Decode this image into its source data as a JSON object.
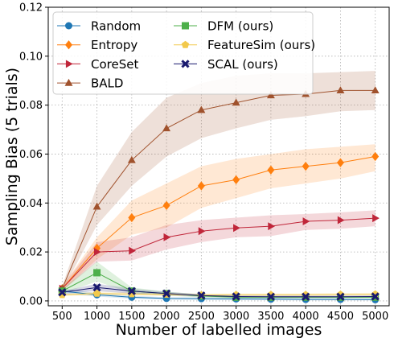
{
  "chart_data": {
    "type": "line",
    "xlabel": "Number of labelled images",
    "ylabel": "Sampling Bias (5 trials)",
    "xlim": [
      300,
      5200
    ],
    "ylim": [
      -0.002,
      0.12
    ],
    "x_ticks": [
      500,
      1000,
      1500,
      2000,
      2500,
      3000,
      3500,
      4000,
      4500,
      5000
    ],
    "y_ticks": [
      0.0,
      0.02,
      0.04,
      0.06,
      0.08,
      0.1,
      0.12
    ],
    "y_tick_labels": [
      "0.00",
      "0.02",
      "0.04",
      "0.06",
      "0.08",
      "0.10",
      "0.12"
    ],
    "grid": true,
    "legend_position": "top-left",
    "x": [
      500,
      1000,
      1500,
      2000,
      2500,
      3000,
      3500,
      4000,
      4500,
      5000
    ],
    "series": [
      {
        "name": "Random",
        "color": "#1f77b4",
        "marker": "circle",
        "values": [
          0.004,
          0.0025,
          0.0015,
          0.001,
          0.0009,
          0.0008,
          0.0007,
          0.0006,
          0.0006,
          0.0005
        ],
        "lower": [
          0.003,
          0.0018,
          0.0009,
          0.0005,
          0.0004,
          0.0003,
          0.0003,
          0.0002,
          0.0002,
          0.0002
        ],
        "upper": [
          0.005,
          0.0032,
          0.0021,
          0.0015,
          0.0014,
          0.0013,
          0.0012,
          0.0011,
          0.001,
          0.0009
        ]
      },
      {
        "name": "Entropy",
        "color": "#ff7f0e",
        "marker": "diamond",
        "values": [
          0.005,
          0.0215,
          0.034,
          0.039,
          0.047,
          0.0495,
          0.0535,
          0.055,
          0.0565,
          0.059
        ],
        "lower": [
          0.004,
          0.017,
          0.027,
          0.03,
          0.038,
          0.042,
          0.046,
          0.048,
          0.05,
          0.053
        ],
        "upper": [
          0.006,
          0.026,
          0.041,
          0.048,
          0.055,
          0.058,
          0.06,
          0.062,
          0.063,
          0.064
        ]
      },
      {
        "name": "CoreSet",
        "color": "#c0263a",
        "marker": "triangle-right",
        "values": [
          0.005,
          0.02,
          0.0205,
          0.026,
          0.0285,
          0.0298,
          0.0305,
          0.0325,
          0.033,
          0.0338
        ],
        "lower": [
          0.004,
          0.016,
          0.0165,
          0.021,
          0.024,
          0.026,
          0.0265,
          0.029,
          0.0295,
          0.0305
        ],
        "upper": [
          0.006,
          0.024,
          0.026,
          0.031,
          0.033,
          0.034,
          0.035,
          0.0355,
          0.0362,
          0.037
        ]
      },
      {
        "name": "BALD",
        "color": "#a0522d",
        "marker": "triangle-up",
        "values": [
          0.005,
          0.0385,
          0.0575,
          0.0705,
          0.078,
          0.081,
          0.084,
          0.0845,
          0.086,
          0.086
        ],
        "lower": [
          0.004,
          0.031,
          0.047,
          0.059,
          0.0665,
          0.0705,
          0.074,
          0.0755,
          0.0775,
          0.078
        ],
        "upper": [
          0.006,
          0.047,
          0.069,
          0.083,
          0.089,
          0.092,
          0.093,
          0.093,
          0.0935,
          0.094
        ]
      },
      {
        "name": "DFM (ours)",
        "color": "#4daf4a",
        "marker": "square",
        "values": [
          0.004,
          0.0115,
          0.004,
          0.003,
          0.002,
          0.0015,
          0.0015,
          0.0015,
          0.0015,
          0.0015
        ],
        "lower": [
          0.003,
          0.008,
          0.003,
          0.0022,
          0.0014,
          0.001,
          0.001,
          0.001,
          0.001,
          0.001
        ],
        "upper": [
          0.005,
          0.016,
          0.0055,
          0.0038,
          0.0027,
          0.002,
          0.002,
          0.002,
          0.002,
          0.002
        ]
      },
      {
        "name": "FeatureSim (ours)",
        "color": "#f2c94c",
        "marker": "pentagon",
        "values": [
          0.0025,
          0.003,
          0.0028,
          0.0026,
          0.0024,
          0.0025,
          0.0025,
          0.0025,
          0.0026,
          0.0027
        ],
        "lower": [
          0.002,
          0.0022,
          0.0021,
          0.002,
          0.0018,
          0.0019,
          0.0019,
          0.0019,
          0.002,
          0.0021
        ],
        "upper": [
          0.003,
          0.0038,
          0.0035,
          0.0032,
          0.003,
          0.0031,
          0.0031,
          0.0031,
          0.0032,
          0.0033
        ]
      },
      {
        "name": "SCAL (ours)",
        "color": "#1a1a6e",
        "marker": "x",
        "values": [
          0.0035,
          0.0055,
          0.004,
          0.003,
          0.0022,
          0.0018,
          0.0017,
          0.0017,
          0.0017,
          0.0018
        ],
        "lower": [
          0.003,
          0.004,
          0.003,
          0.0023,
          0.0017,
          0.0014,
          0.0013,
          0.0013,
          0.0013,
          0.0014
        ],
        "upper": [
          0.004,
          0.007,
          0.005,
          0.0037,
          0.0027,
          0.0022,
          0.0021,
          0.0021,
          0.0021,
          0.0022
        ]
      }
    ]
  }
}
